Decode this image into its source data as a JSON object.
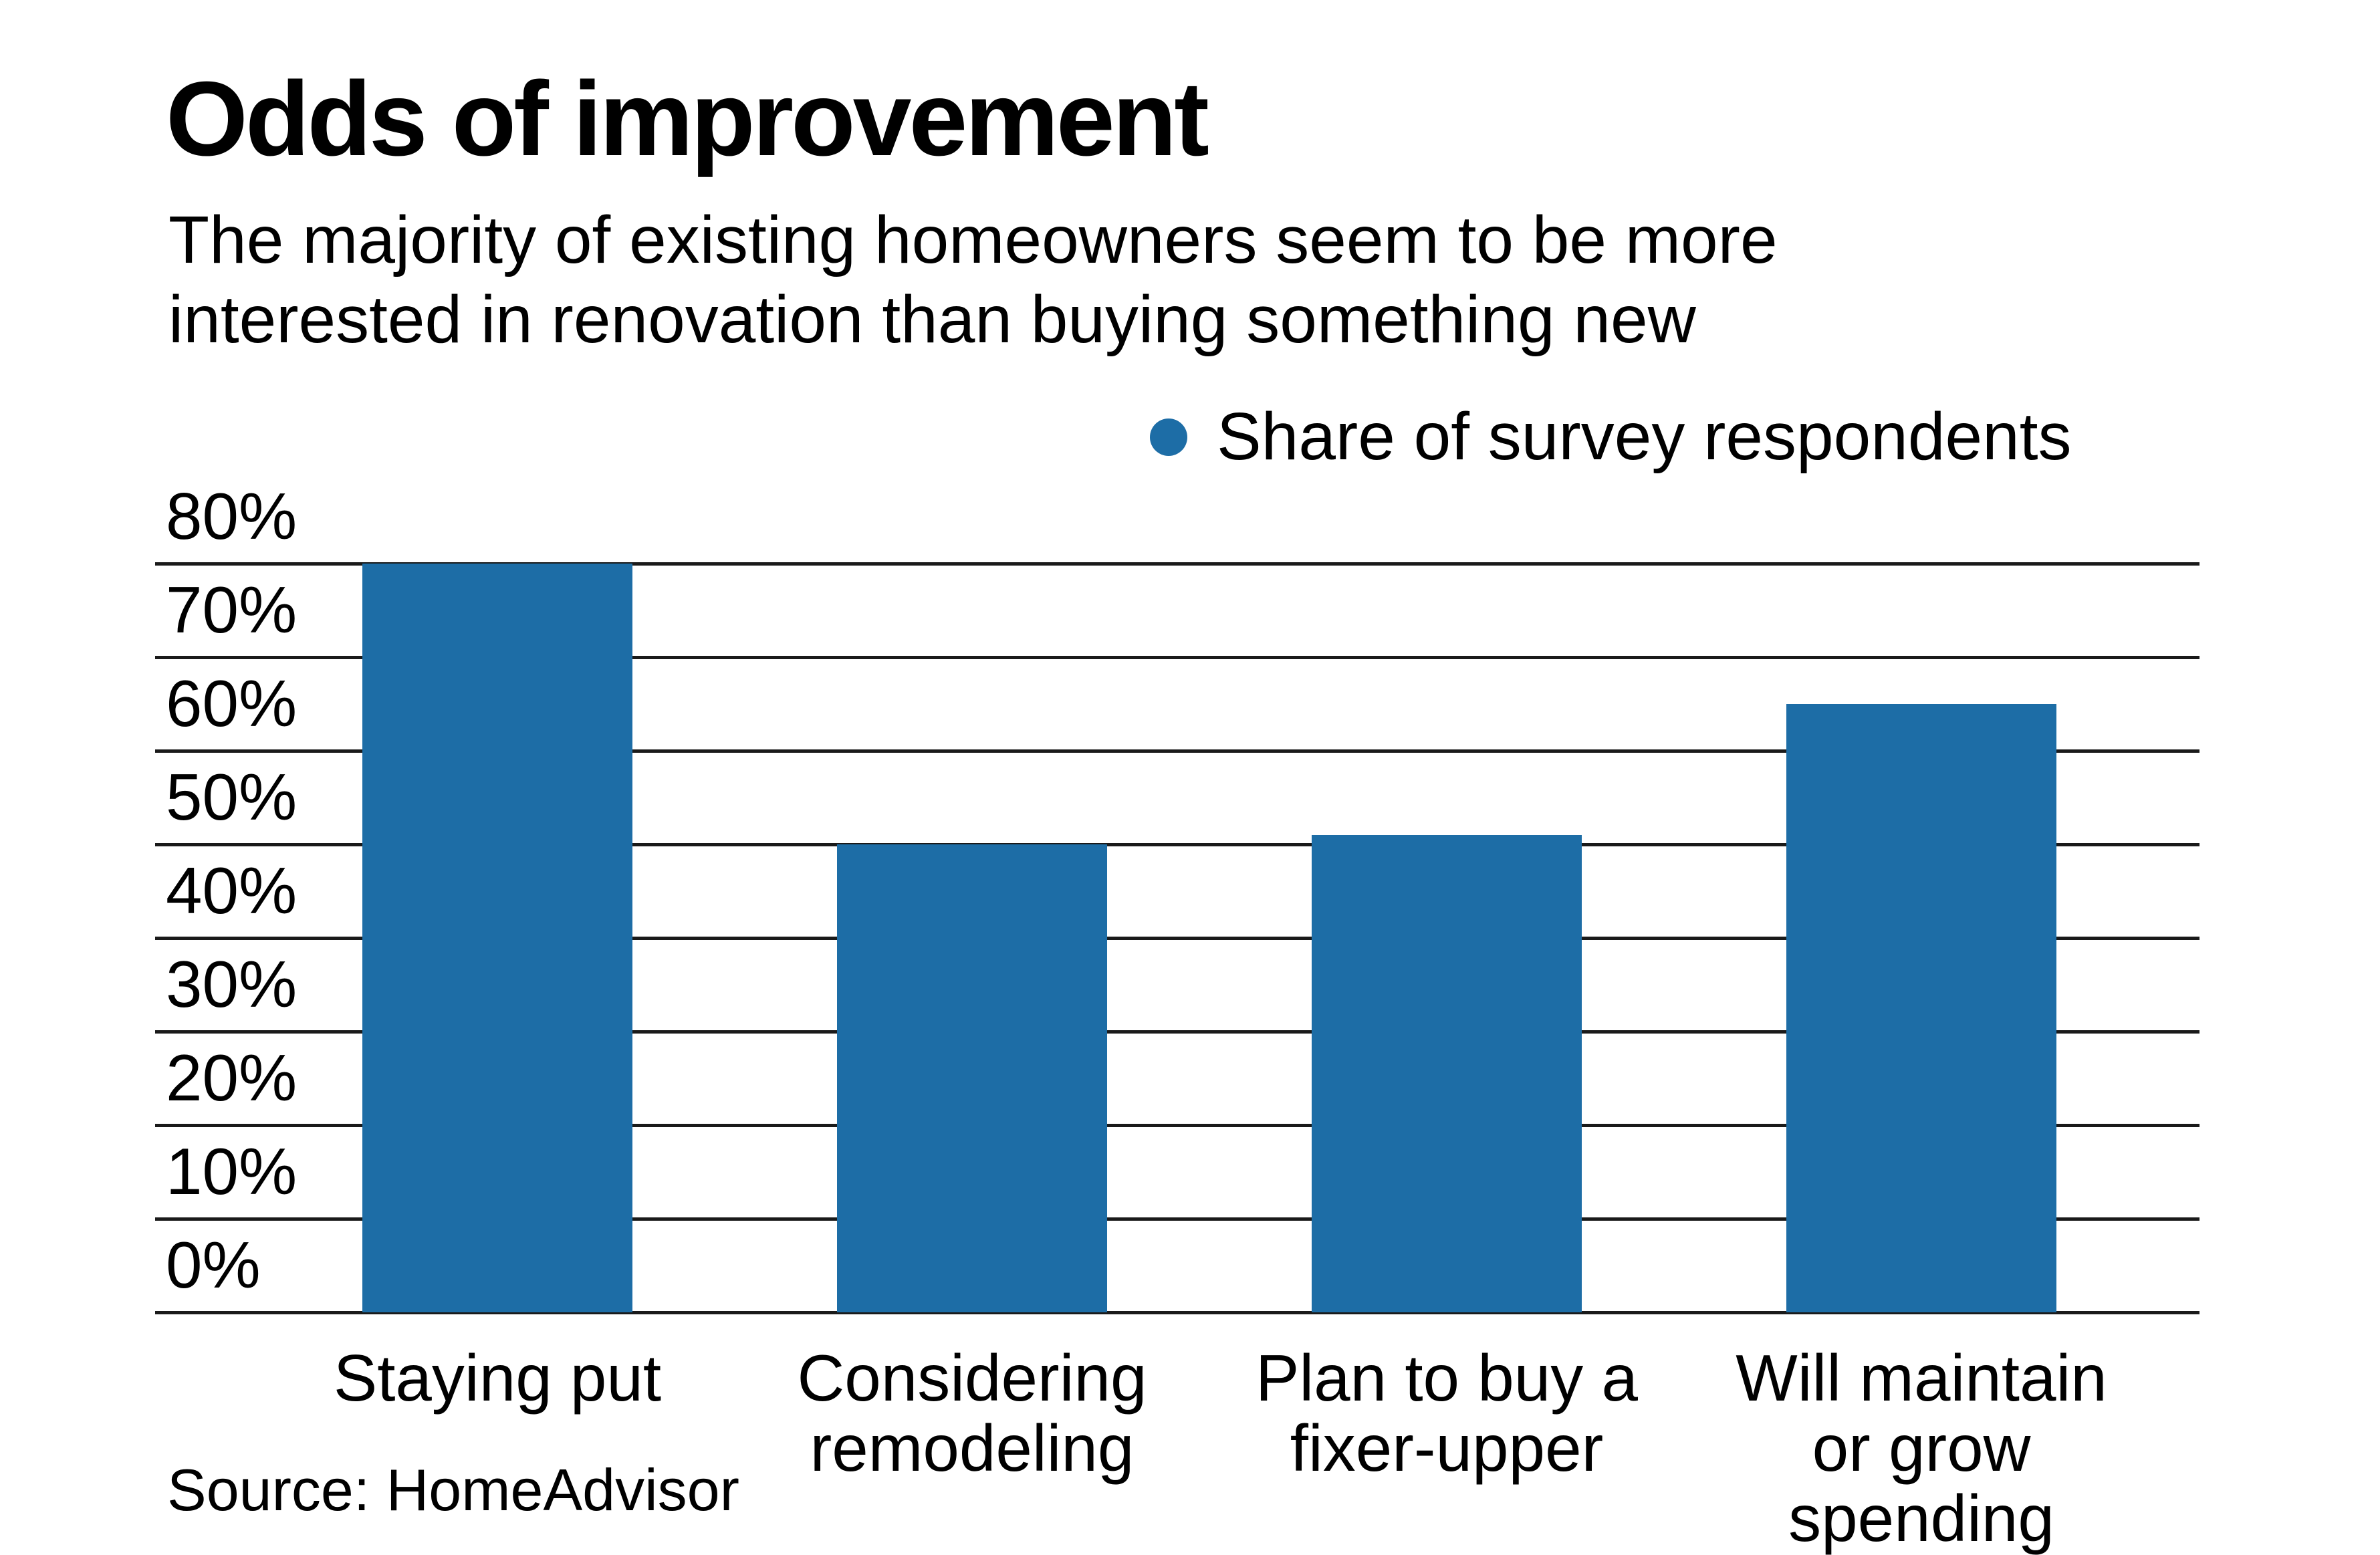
{
  "header": {
    "title": "Odds of improvement",
    "subtitle_lines": [
      "The majority of existing homeowners seem to be more",
      "interested in renovation than buying something new"
    ]
  },
  "legend": {
    "label": "Share of survey respondents"
  },
  "source_note": "Source: HomeAdvisor",
  "colors": {
    "bar": "#1d6da6",
    "grid": "#1a1a1a",
    "text": "#000000",
    "background": "#ffffff"
  },
  "chart_data": {
    "type": "bar",
    "title": "Odds of improvement",
    "subtitle": "The majority of existing homeowners seem to be more interested in renovation than buying something new",
    "series_name": "Share of survey respondents",
    "categories": [
      "Staying put",
      "Considering remodeling",
      "Plan to buy a fixer-upper",
      "Will maintain or grow spending"
    ],
    "category_label_lines": [
      [
        "Staying put"
      ],
      [
        "Considering",
        "remodeling"
      ],
      [
        "Plan to buy a",
        "fixer-upper"
      ],
      [
        "Will maintain",
        "or grow",
        "spending"
      ]
    ],
    "values": [
      80,
      50,
      51,
      65
    ],
    "unit": "%",
    "ylabel": "",
    "xlabel": "",
    "ylim": [
      0,
      80
    ],
    "yticks": [
      80,
      70,
      60,
      50,
      40,
      30,
      20,
      10,
      0
    ],
    "ytick_labels": [
      "80%",
      "70%",
      "60%",
      "50%",
      "40%",
      "30%",
      "20%",
      "10%",
      "0%"
    ],
    "grid": true,
    "gridline_color": "#1a1a1a",
    "bar_color": "#1d6da6",
    "legend_position": "top-right",
    "source": "Source: HomeAdvisor"
  }
}
